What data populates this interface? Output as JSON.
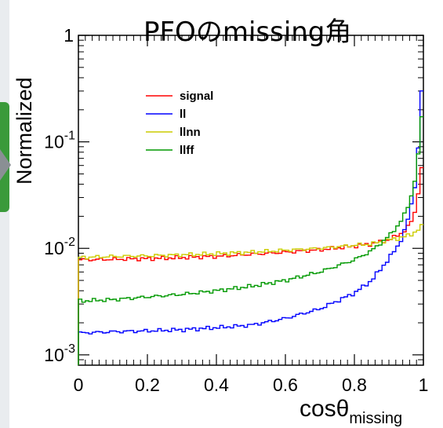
{
  "chart_data": {
    "type": "line",
    "title": "PFOのmissing角",
    "xlabel": "cosθmissing",
    "xlabel_main": "cosθ",
    "xlabel_sub": "missing",
    "ylabel": "Normalized",
    "xlim": [
      0,
      1
    ],
    "ylim": [
      0.0008,
      1.0
    ],
    "yscale": "log",
    "x_ticks": [
      "0",
      "0.2",
      "0.4",
      "0.6",
      "0.8",
      "1"
    ],
    "y_ticks": [
      {
        "value": 1,
        "base": "1",
        "exp": ""
      },
      {
        "value": 0.1,
        "base": "10",
        "exp": "-1"
      },
      {
        "value": 0.01,
        "base": "10",
        "exp": "-2"
      },
      {
        "value": 0.001,
        "base": "10",
        "exp": "-3"
      }
    ],
    "legend_position": "upper-left",
    "series": [
      {
        "name": "signal",
        "color": "#ff0000",
        "x": [
          0,
          0.1,
          0.2,
          0.3,
          0.4,
          0.5,
          0.6,
          0.7,
          0.8,
          0.85,
          0.9,
          0.93,
          0.95,
          0.97,
          0.98,
          0.99,
          1.0
        ],
        "y": [
          0.0078,
          0.0079,
          0.008,
          0.0082,
          0.0084,
          0.0088,
          0.0092,
          0.0097,
          0.0105,
          0.011,
          0.012,
          0.0135,
          0.015,
          0.019,
          0.025,
          0.045,
          0.07
        ]
      },
      {
        "name": "ll",
        "color": "#0000ff",
        "x": [
          0,
          0.1,
          0.2,
          0.3,
          0.4,
          0.5,
          0.6,
          0.7,
          0.8,
          0.85,
          0.9,
          0.93,
          0.95,
          0.97,
          0.98,
          0.99,
          1.0
        ],
        "y": [
          0.0016,
          0.00165,
          0.00168,
          0.00172,
          0.0018,
          0.0019,
          0.0022,
          0.0027,
          0.0038,
          0.005,
          0.008,
          0.011,
          0.016,
          0.03,
          0.05,
          0.15,
          0.6
        ]
      },
      {
        "name": "llnn",
        "color": "#cccc00",
        "x": [
          0,
          0.1,
          0.2,
          0.3,
          0.4,
          0.5,
          0.6,
          0.7,
          0.8,
          0.85,
          0.9,
          0.93,
          0.95,
          0.97,
          0.98,
          0.99,
          1.0
        ],
        "y": [
          0.0082,
          0.0084,
          0.0085,
          0.0087,
          0.0089,
          0.0092,
          0.0096,
          0.01,
          0.0107,
          0.011,
          0.012,
          0.0125,
          0.013,
          0.0138,
          0.0145,
          0.0155,
          0.0165
        ]
      },
      {
        "name": "llff",
        "color": "#009900",
        "x": [
          0,
          0.1,
          0.2,
          0.3,
          0.4,
          0.5,
          0.6,
          0.7,
          0.8,
          0.85,
          0.9,
          0.93,
          0.95,
          0.97,
          0.98,
          0.99,
          1.0
        ],
        "y": [
          0.0032,
          0.0033,
          0.0035,
          0.0037,
          0.004,
          0.0044,
          0.005,
          0.006,
          0.0078,
          0.0095,
          0.013,
          0.017,
          0.022,
          0.035,
          0.055,
          0.1,
          0.3
        ]
      }
    ]
  }
}
